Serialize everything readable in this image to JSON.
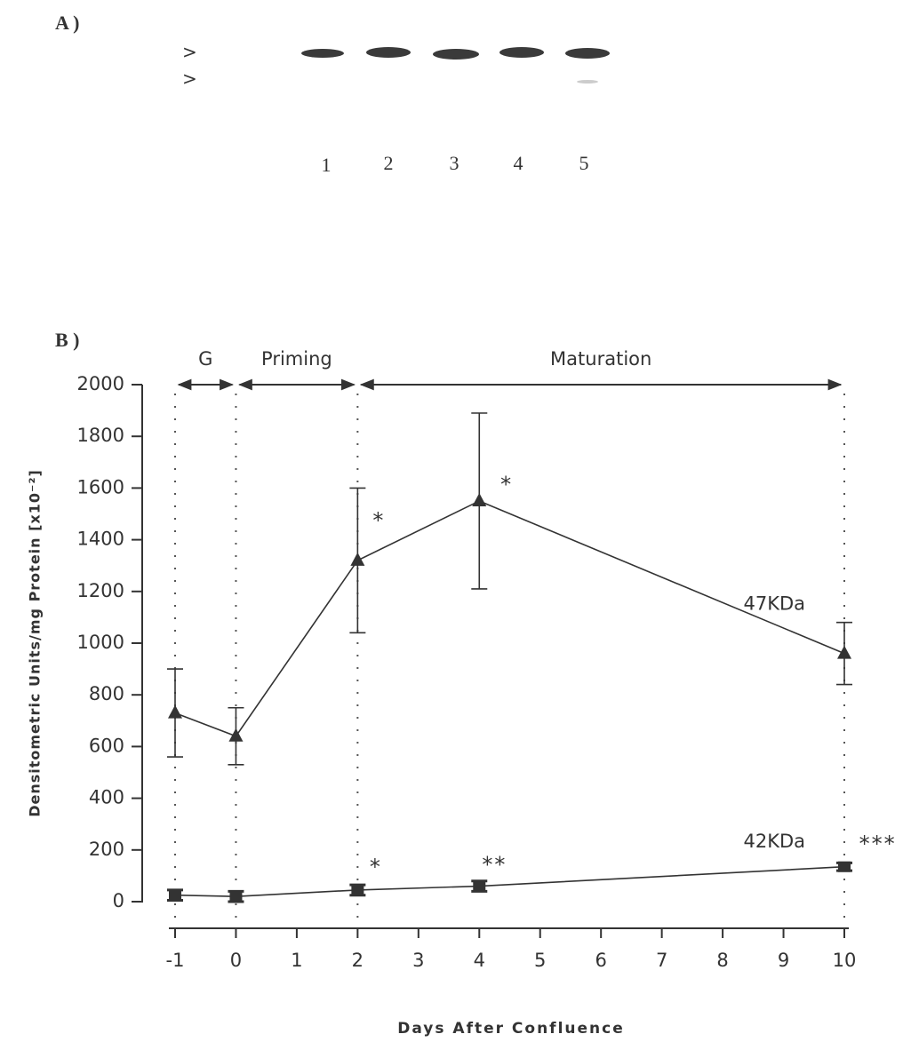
{
  "panel_a": {
    "label": "A )",
    "markers": [
      ">",
      ">"
    ],
    "lanes": [
      "1",
      "2",
      "3",
      "4",
      "5"
    ]
  },
  "chart_data": {
    "type": "line",
    "panel_label": "B )",
    "x_label": "Days After Confluence",
    "y_label": "Densitometric Units/mg Protein [x10⁻²]",
    "x": [
      -1,
      0,
      2,
      4,
      10
    ],
    "series": [
      {
        "name": "47KDa",
        "color": "#333333",
        "marker": "triangle",
        "values": [
          730,
          640,
          1320,
          1550,
          960
        ],
        "errors": [
          170,
          110,
          280,
          340,
          120
        ]
      },
      {
        "name": "42KDa",
        "color": "#333333",
        "marker": "square",
        "values": [
          25,
          20,
          45,
          60,
          135
        ],
        "errors": [
          20,
          20,
          20,
          20,
          15
        ]
      }
    ],
    "xlim": [
      -1,
      10
    ],
    "xticks": [
      -1,
      0,
      1,
      2,
      3,
      4,
      5,
      6,
      7,
      8,
      9,
      10
    ],
    "ylim": [
      0,
      2000
    ],
    "yticks": [
      0,
      200,
      400,
      600,
      800,
      1000,
      1200,
      1400,
      1600,
      1800,
      2000
    ],
    "phases": [
      {
        "label": "G",
        "start": -1,
        "end": 0
      },
      {
        "label": "Priming",
        "start": 0,
        "end": 2
      },
      {
        "label": "Maturation",
        "start": 2,
        "end": 10
      }
    ],
    "series_labels": [
      {
        "text": "47KDa",
        "x": 8.85,
        "y": 1150
      },
      {
        "text": "42KDa",
        "x": 8.85,
        "y": 230
      }
    ],
    "annotations": [
      {
        "text": "*",
        "x": 2.35,
        "y": 1470
      },
      {
        "text": "*",
        "x": 4.45,
        "y": 1610
      },
      {
        "text": "*",
        "x": 2.3,
        "y": 130
      },
      {
        "text": "**",
        "x": 4.25,
        "y": 140
      },
      {
        "text": "***",
        "x": 10.55,
        "y": 220
      }
    ]
  }
}
